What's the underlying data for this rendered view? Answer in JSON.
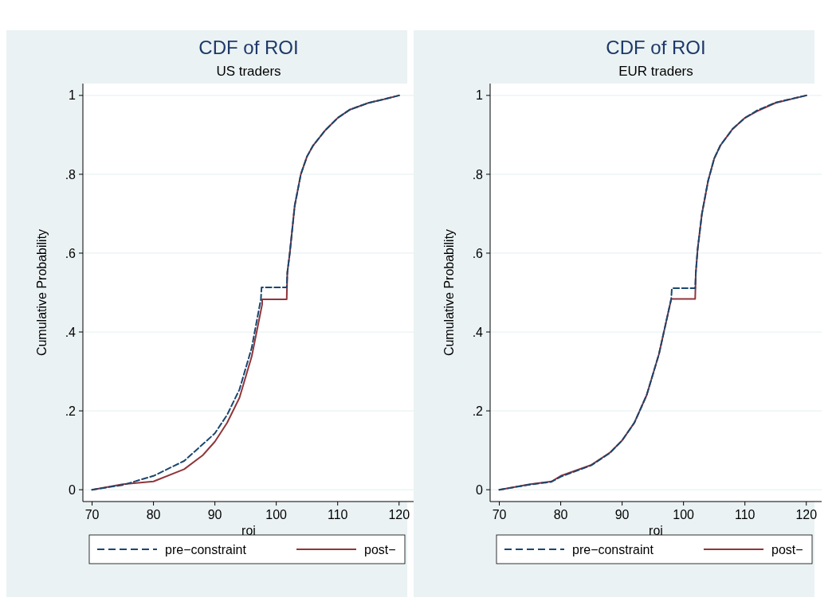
{
  "chart_data": [
    {
      "type": "line",
      "title": "CDF of ROI",
      "subtitle": "US traders",
      "xlabel": "roi",
      "ylabel": "Cumulative Probability",
      "xlim": [
        68.5,
        122.5
      ],
      "ylim": [
        -0.03,
        1.03
      ],
      "xticks": [
        70,
        80,
        90,
        100,
        110,
        120
      ],
      "yticks": [
        {
          "value": 0,
          "label": "0"
        },
        {
          "value": 0.2,
          "label": ".2"
        },
        {
          "value": 0.4,
          "label": ".4"
        },
        {
          "value": 0.6,
          "label": ".6"
        },
        {
          "value": 0.8,
          "label": ".8"
        },
        {
          "value": 1,
          "label": "1"
        }
      ],
      "grid": "y",
      "legend": "bottom",
      "series": [
        {
          "name": "pre−constraint",
          "color": "#1a476f",
          "line_style": "dashed",
          "x": [
            70,
            75,
            80,
            85,
            90,
            92,
            94,
            96,
            97.5,
            97.6,
            101.7,
            101.8,
            102.2,
            103,
            104,
            105,
            106,
            108,
            110,
            112,
            115,
            117.5,
            120
          ],
          "values": [
            0,
            0.012,
            0.035,
            0.073,
            0.143,
            0.19,
            0.254,
            0.36,
            0.484,
            0.513,
            0.513,
            0.55,
            0.6,
            0.72,
            0.8,
            0.845,
            0.873,
            0.912,
            0.943,
            0.964,
            0.981,
            0.99,
            1
          ]
        },
        {
          "name": "post−",
          "color": "#90353b",
          "line_style": "solid",
          "x": [
            70,
            75,
            80,
            85,
            88,
            90,
            92,
            94,
            96,
            97.7,
            97.7,
            101.7,
            101.8,
            102.2,
            103,
            104,
            105,
            106,
            108,
            110,
            112,
            115,
            117.5,
            120
          ],
          "values": [
            0,
            0.014,
            0.021,
            0.052,
            0.087,
            0.122,
            0.17,
            0.233,
            0.338,
            0.47,
            0.483,
            0.483,
            0.55,
            0.6,
            0.72,
            0.8,
            0.845,
            0.873,
            0.912,
            0.943,
            0.964,
            0.981,
            0.99,
            1
          ]
        }
      ]
    },
    {
      "type": "line",
      "title": "CDF of ROI",
      "subtitle": "EUR traders",
      "xlabel": "roi",
      "ylabel": "Cumulative Probability",
      "xlim": [
        68.5,
        122.5
      ],
      "ylim": [
        -0.03,
        1.03
      ],
      "xticks": [
        70,
        80,
        90,
        100,
        110,
        120
      ],
      "yticks": [
        {
          "value": 0,
          "label": "0"
        },
        {
          "value": 0.2,
          "label": ".2"
        },
        {
          "value": 0.4,
          "label": ".4"
        },
        {
          "value": 0.6,
          "label": ".6"
        },
        {
          "value": 0.8,
          "label": ".8"
        },
        {
          "value": 1,
          "label": "1"
        }
      ],
      "grid": "y",
      "legend": "bottom",
      "series": [
        {
          "name": "pre−constraint",
          "color": "#1a476f",
          "line_style": "dashed",
          "x": [
            70,
            75,
            78.5,
            80,
            85,
            88,
            90,
            92,
            94,
            96,
            97,
            98,
            98.1,
            101.9,
            102,
            102.3,
            103,
            104,
            105,
            106,
            108,
            110,
            112,
            115,
            120
          ],
          "values": [
            0,
            0.013,
            0.02,
            0.033,
            0.062,
            0.093,
            0.125,
            0.17,
            0.24,
            0.344,
            0.414,
            0.484,
            0.511,
            0.511,
            0.55,
            0.61,
            0.7,
            0.783,
            0.84,
            0.873,
            0.915,
            0.943,
            0.962,
            0.982,
            1
          ]
        },
        {
          "name": "post−",
          "color": "#90353b",
          "line_style": "solid",
          "x": [
            70,
            75,
            78.5,
            80,
            85,
            88,
            90,
            92,
            94,
            96,
            97,
            98,
            101.9,
            102,
            102.3,
            103,
            104,
            105,
            106,
            108,
            110,
            112,
            115,
            120
          ],
          "values": [
            0,
            0.014,
            0.021,
            0.035,
            0.063,
            0.094,
            0.125,
            0.17,
            0.24,
            0.344,
            0.414,
            0.484,
            0.484,
            0.55,
            0.61,
            0.7,
            0.783,
            0.84,
            0.873,
            0.915,
            0.943,
            0.96,
            0.981,
            1
          ]
        }
      ]
    }
  ]
}
